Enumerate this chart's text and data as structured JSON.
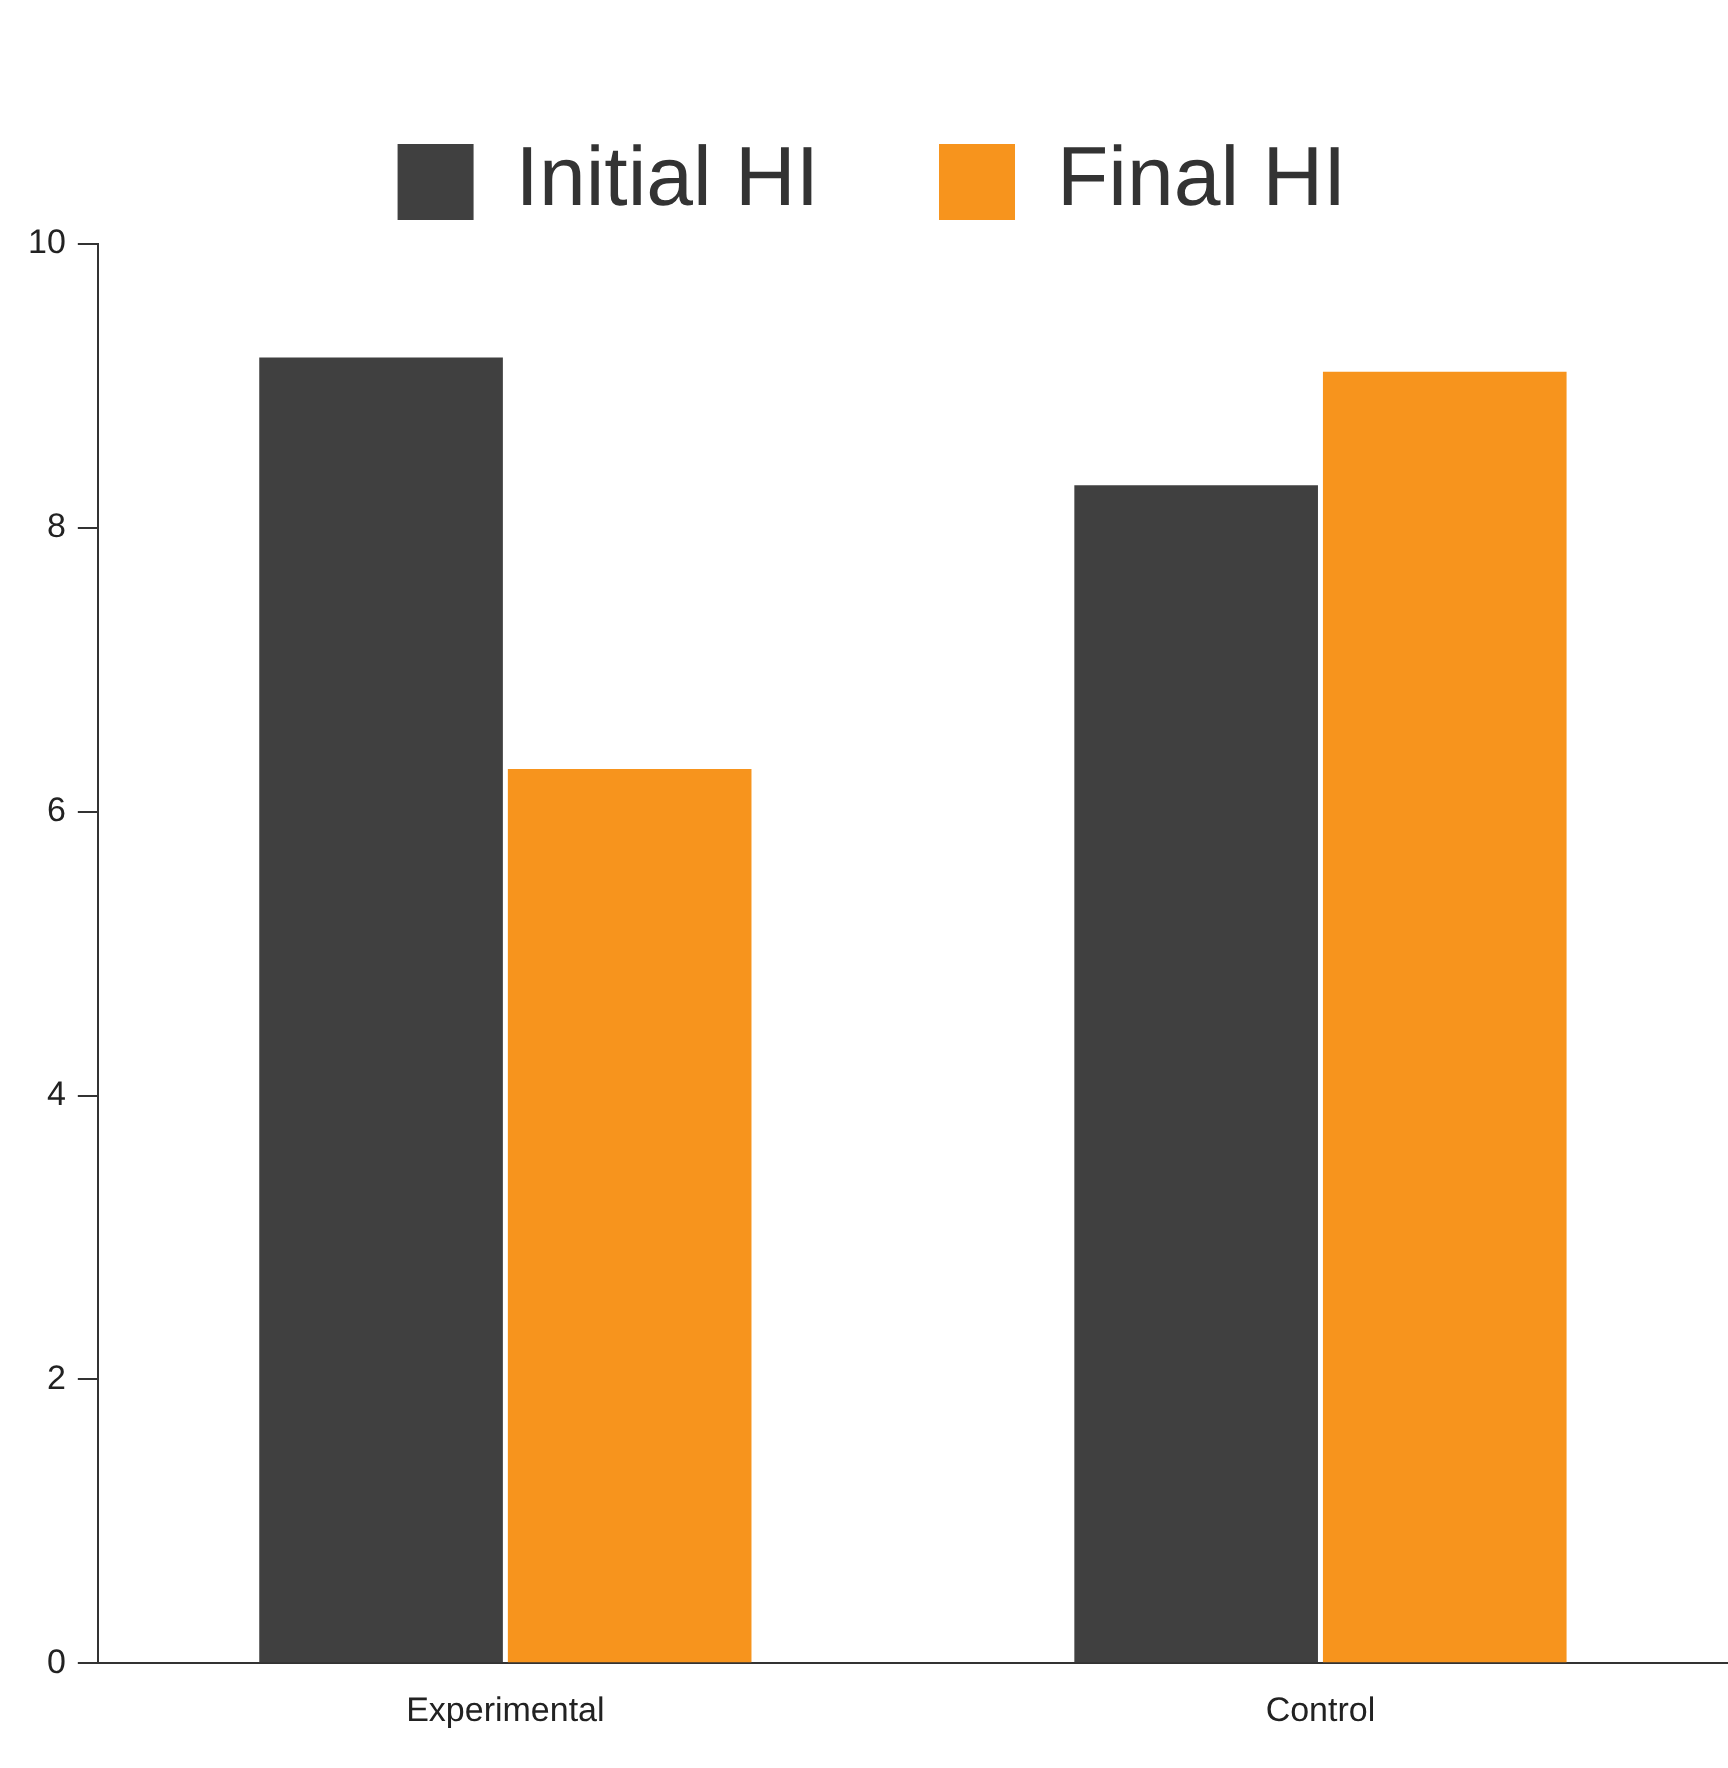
{
  "chart_data": {
    "type": "bar",
    "categories": [
      "Experimental",
      "Control"
    ],
    "series": [
      {
        "name": "Initial HI",
        "color": "#404040",
        "values": [
          9.2,
          8.3
        ]
      },
      {
        "name": "Final HI",
        "color": "#f7941d",
        "values": [
          6.3,
          9.1
        ]
      }
    ],
    "ylim": [
      0,
      10
    ],
    "yticks": [
      0,
      2,
      4,
      6,
      8,
      10
    ],
    "grid": false,
    "legend": "top"
  }
}
